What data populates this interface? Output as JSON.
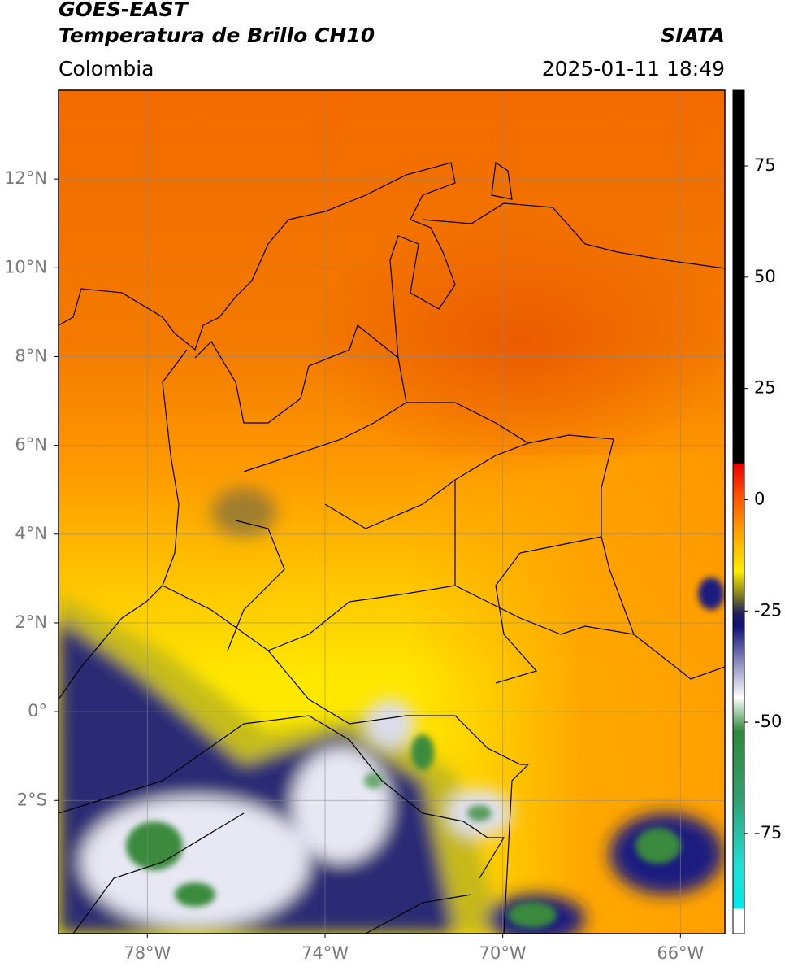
{
  "header": {
    "title": "GOES-EAST",
    "subtitle": "Temperatura de Brillo CH10",
    "region": "Colombia",
    "source": "SIATA",
    "datetime": "2025-01-11 18:49"
  },
  "map": {
    "lon_range": [
      -80,
      -65
    ],
    "lat_range": [
      -5,
      14
    ],
    "lon_ticks": [
      {
        "value": -78,
        "label": "78°W"
      },
      {
        "value": -74,
        "label": "74°W"
      },
      {
        "value": -70,
        "label": "70°W"
      },
      {
        "value": -66,
        "label": "66°W"
      }
    ],
    "lat_ticks": [
      {
        "value": 12,
        "label": "12°N"
      },
      {
        "value": 10,
        "label": "10°N"
      },
      {
        "value": 8,
        "label": "8°N"
      },
      {
        "value": 6,
        "label": "6°N"
      },
      {
        "value": 4,
        "label": "4°N"
      },
      {
        "value": 2,
        "label": "2°N"
      },
      {
        "value": 0,
        "label": "0°"
      },
      {
        "value": -2,
        "label": "2°S"
      }
    ]
  },
  "colorbar": {
    "range": [
      -97.5,
      92
    ],
    "ticks": [
      75,
      50,
      25,
      0,
      -25,
      -50,
      -75
    ]
  }
}
